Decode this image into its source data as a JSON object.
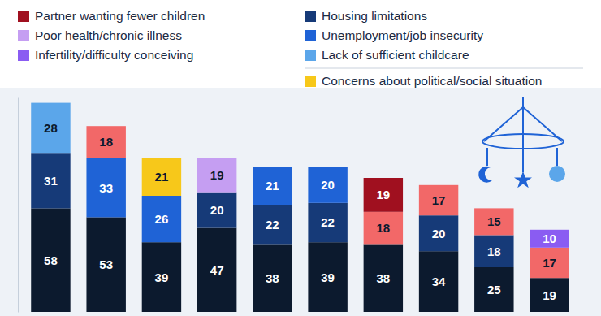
{
  "chart_data": {
    "type": "bar",
    "stacked": true,
    "data_labels": true,
    "tick_labels": false,
    "categories": [
      null,
      null,
      null,
      null,
      null,
      null,
      null,
      null,
      null,
      null
    ],
    "ylim": [
      0,
      120
    ],
    "series": [
      {
        "name": null,
        "color": "#0c1a2e",
        "values": [
          58,
          53,
          39,
          47,
          38,
          39,
          38,
          34,
          25,
          19
        ]
      },
      {
        "name": "Housing limitations",
        "color": "#163a78",
        "values": [
          31,
          null,
          null,
          20,
          22,
          22,
          null,
          20,
          18,
          null
        ]
      },
      {
        "name": "Unemployment/job insecurity",
        "color": "#1f63d6",
        "values": [
          null,
          33,
          26,
          null,
          21,
          20,
          null,
          null,
          null,
          null
        ]
      },
      {
        "name": null,
        "color": "#f26868",
        "values": [
          null,
          18,
          null,
          null,
          null,
          null,
          18,
          17,
          15,
          17
        ]
      },
      {
        "name": "Lack of sufficient childcare",
        "color": "#5ba6ea",
        "values": [
          28,
          null,
          null,
          null,
          null,
          null,
          null,
          null,
          null,
          null
        ]
      },
      {
        "name": "Concerns about political/social situation",
        "color": "#f7c81a",
        "values": [
          null,
          null,
          21,
          null,
          null,
          null,
          null,
          null,
          null,
          null
        ]
      },
      {
        "name": "Poor health/chronic illness",
        "color": "#c59ef2",
        "values": [
          null,
          null,
          null,
          19,
          null,
          null,
          null,
          null,
          null,
          null
        ]
      },
      {
        "name": "Infertility/difficulty conceiving",
        "color": "#8a5cf2",
        "values": [
          null,
          null,
          null,
          null,
          null,
          null,
          null,
          null,
          null,
          10
        ]
      },
      {
        "name": "Partner wanting fewer children",
        "color": "#a0101f",
        "values": [
          null,
          null,
          null,
          null,
          null,
          null,
          19,
          null,
          null,
          null
        ]
      }
    ]
  }
}
